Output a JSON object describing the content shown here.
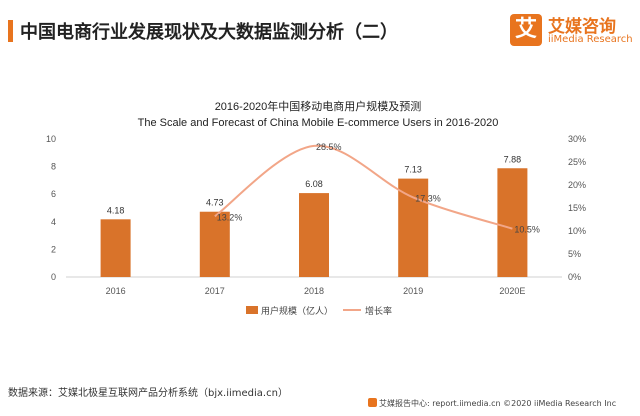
{
  "header": {
    "title": "中国电商行业发展现状及大数据监测分析（二）"
  },
  "logo": {
    "icon_char": "艾",
    "name_cn": "艾媒咨询",
    "name_en": "iiMedia Research"
  },
  "chart_data": {
    "type": "bar",
    "title": "2016-2020年中国移动电商用户规模及预测",
    "subtitle": "The Scale and Forecast of China Mobile E-commerce  Users in 2016-2020",
    "categories": [
      "2016",
      "2017",
      "2018",
      "2019",
      "2020E"
    ],
    "series": [
      {
        "name": "用户规模（亿人）",
        "type": "bar",
        "axis": "left",
        "color": "#d9732a",
        "values": [
          4.18,
          4.73,
          6.08,
          7.13,
          7.88
        ],
        "labels": [
          "4.18",
          "4.73",
          "6.08",
          "7.13",
          "7.88"
        ]
      },
      {
        "name": "增长率",
        "type": "line",
        "axis": "right",
        "color": "#f2a688",
        "values": [
          null,
          13.2,
          28.5,
          17.3,
          10.5
        ],
        "labels": [
          "",
          "13.2%",
          "28.5%",
          "17.3%",
          "10.5%"
        ]
      }
    ],
    "y_left": {
      "ylim": [
        0,
        10
      ],
      "ticks": [
        "0",
        "2",
        "4",
        "6",
        "8",
        "10"
      ]
    },
    "y_right": {
      "ylim": [
        0,
        30
      ],
      "ticks": [
        "0%",
        "5%",
        "10%",
        "15%",
        "20%",
        "25%",
        "30%"
      ]
    },
    "grid": false,
    "legend": "bottom-center"
  },
  "footer": {
    "source": "数据来源：艾媒北极星互联网产品分析系统（bjx.iimedia.cn）",
    "copyright": "艾媒报告中心: report.iimedia.cn  ©2020  iiMedia Research  Inc"
  }
}
